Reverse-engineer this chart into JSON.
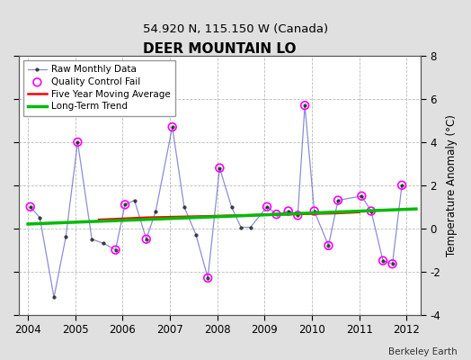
{
  "title": "DEER MOUNTAIN LO",
  "subtitle": "54.920 N, 115.150 W (Canada)",
  "ylabel": "Temperature Anomaly (°C)",
  "credit": "Berkeley Earth",
  "xlim": [
    2003.8,
    2012.3
  ],
  "ylim": [
    -4,
    8
  ],
  "yticks": [
    -4,
    -2,
    0,
    2,
    4,
    6,
    8
  ],
  "xticks": [
    2004,
    2005,
    2006,
    2007,
    2008,
    2009,
    2010,
    2011,
    2012
  ],
  "raw_x": [
    2004.05,
    2004.25,
    2004.55,
    2004.8,
    2005.05,
    2005.35,
    2005.6,
    2005.85,
    2006.05,
    2006.25,
    2006.5,
    2006.7,
    2007.05,
    2007.3,
    2007.55,
    2007.8,
    2008.05,
    2008.3,
    2008.5,
    2008.7,
    2009.05,
    2009.25,
    2009.5,
    2009.7,
    2009.85,
    2010.05,
    2010.35,
    2010.55,
    2011.05,
    2011.25,
    2011.5,
    2011.7,
    2011.9
  ],
  "raw_y": [
    1.0,
    0.5,
    -3.2,
    -0.4,
    4.0,
    -0.5,
    -0.7,
    -1.0,
    1.1,
    1.3,
    -0.5,
    0.8,
    4.7,
    1.0,
    -0.3,
    -2.3,
    2.8,
    1.0,
    0.05,
    0.05,
    1.0,
    0.65,
    0.8,
    0.6,
    5.7,
    0.8,
    -0.8,
    1.3,
    1.5,
    0.8,
    -1.5,
    -1.65,
    2.0
  ],
  "qc_fail_x": [
    2004.05,
    2005.05,
    2005.85,
    2006.05,
    2006.5,
    2007.05,
    2007.8,
    2008.05,
    2009.05,
    2009.25,
    2009.5,
    2009.7,
    2009.85,
    2010.05,
    2010.35,
    2010.55,
    2011.05,
    2011.25,
    2011.5,
    2011.7,
    2011.9
  ],
  "qc_fail_y": [
    1.0,
    4.0,
    -1.0,
    1.1,
    -0.5,
    4.7,
    -2.3,
    2.8,
    1.0,
    0.65,
    0.8,
    0.6,
    5.7,
    0.8,
    -0.8,
    1.3,
    1.5,
    0.8,
    -1.5,
    -1.65,
    2.0
  ],
  "moving_avg_x": [
    2005.5,
    2006.5,
    2007.5,
    2008.5,
    2009.5,
    2010.5,
    2011.0
  ],
  "moving_avg_y": [
    0.4,
    0.5,
    0.55,
    0.6,
    0.65,
    0.7,
    0.75
  ],
  "trend_x": [
    2004.0,
    2012.2
  ],
  "trend_y": [
    0.2,
    0.9
  ],
  "bg_color": "#e0e0e0",
  "plot_bg_color": "#ffffff",
  "raw_line_color": "#6666cc",
  "raw_marker_color": "#111111",
  "qc_color": "#ff00ff",
  "moving_avg_color": "#ff0000",
  "trend_color": "#00bb00",
  "grid_color": "#bbbbbb"
}
